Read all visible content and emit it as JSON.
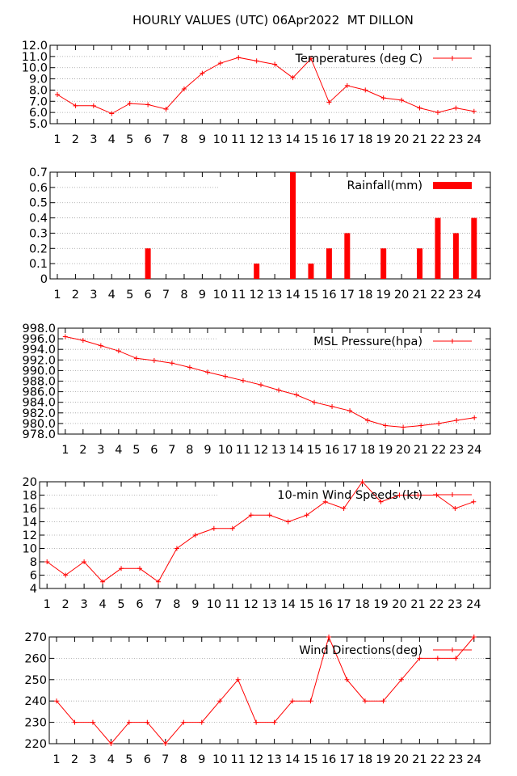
{
  "title": "HOURLY VALUES (UTC) 06Apr2022  MT DILLON",
  "chart_data": [
    {
      "type": "line",
      "legend": "Temperatures (deg C)",
      "legend_position": "top-right",
      "grid": true,
      "x": [
        1,
        2,
        3,
        4,
        5,
        6,
        7,
        8,
        9,
        10,
        11,
        12,
        13,
        14,
        15,
        16,
        17,
        18,
        19,
        20,
        21,
        22,
        23,
        24
      ],
      "y": [
        7.6,
        6.6,
        6.6,
        5.9,
        6.8,
        6.7,
        6.3,
        8.1,
        9.5,
        10.4,
        10.9,
        10.6,
        10.3,
        9.1,
        10.8,
        6.9,
        8.4,
        8.0,
        7.3,
        7.1,
        6.4,
        6.0,
        6.4,
        6.1
      ],
      "ylim": [
        5.0,
        12.0
      ],
      "xticks": [
        "1",
        "2",
        "3",
        "4",
        "5",
        "6",
        "7",
        "8",
        "9",
        "10",
        "11",
        "12",
        "13",
        "14",
        "15",
        "16",
        "17",
        "18",
        "19",
        "20",
        "21",
        "22",
        "23",
        "24"
      ],
      "yticks": [
        "5.0",
        "6.0",
        "7.0",
        "8.0",
        "9.0",
        "10.0",
        "11.0",
        "12.0"
      ]
    },
    {
      "type": "bar",
      "legend": "Rainfall(mm)",
      "legend_position": "top-right",
      "grid": true,
      "x": [
        1,
        2,
        3,
        4,
        5,
        6,
        7,
        8,
        9,
        10,
        11,
        12,
        13,
        14,
        15,
        16,
        17,
        18,
        19,
        20,
        21,
        22,
        23,
        24
      ],
      "y": [
        0,
        0,
        0,
        0,
        0,
        0.2,
        0,
        0,
        0,
        0,
        0,
        0.1,
        0,
        0.7,
        0.1,
        0.2,
        0.3,
        0,
        0.2,
        0,
        0.2,
        0.4,
        0.3,
        0.4
      ],
      "ylim": [
        0,
        0.7
      ],
      "xticks": [
        "1",
        "2",
        "3",
        "4",
        "5",
        "6",
        "7",
        "8",
        "9",
        "10",
        "11",
        "12",
        "13",
        "14",
        "15",
        "16",
        "17",
        "18",
        "19",
        "20",
        "21",
        "22",
        "23",
        "24"
      ],
      "yticks": [
        "0",
        "0.1",
        "0.2",
        "0.3",
        "0.4",
        "0.5",
        "0.6",
        "0.7"
      ]
    },
    {
      "type": "line",
      "legend": "MSL Pressure(hpa)",
      "legend_position": "top-right",
      "grid": true,
      "x": [
        1,
        2,
        3,
        4,
        5,
        6,
        7,
        8,
        9,
        10,
        11,
        12,
        13,
        14,
        15,
        16,
        17,
        18,
        19,
        20,
        21,
        22,
        23,
        24
      ],
      "y": [
        996.4,
        995.7,
        994.7,
        993.7,
        992.3,
        991.9,
        991.4,
        990.6,
        989.7,
        988.9,
        988.1,
        987.3,
        986.3,
        985.4,
        984.0,
        983.2,
        982.4,
        980.6,
        979.6,
        979.3,
        979.6,
        980.0,
        980.6,
        981.1
      ],
      "ylim": [
        978.0,
        998.0
      ],
      "xticks": [
        "1",
        "2",
        "3",
        "4",
        "5",
        "6",
        "7",
        "8",
        "9",
        "10",
        "11",
        "12",
        "13",
        "14",
        "15",
        "16",
        "17",
        "18",
        "19",
        "20",
        "21",
        "22",
        "23",
        "24"
      ],
      "yticks": [
        "978.0",
        "980.0",
        "982.0",
        "984.0",
        "986.0",
        "988.0",
        "990.0",
        "992.0",
        "994.0",
        "996.0",
        "998.0"
      ]
    },
    {
      "type": "line",
      "legend": "10-min Wind Speeds (kt)",
      "legend_position": "top-right",
      "grid": true,
      "x": [
        1,
        2,
        3,
        4,
        5,
        6,
        7,
        8,
        9,
        10,
        11,
        12,
        13,
        14,
        15,
        16,
        17,
        18,
        19,
        20,
        21,
        22,
        23,
        24
      ],
      "y": [
        8,
        6,
        8,
        5,
        7,
        7,
        5,
        10,
        12,
        13,
        13,
        15,
        15,
        14,
        15,
        17,
        16,
        20,
        17,
        18,
        18,
        18,
        16,
        17
      ],
      "ylim": [
        4,
        20
      ],
      "xticks": [
        "1",
        "2",
        "3",
        "4",
        "5",
        "6",
        "7",
        "8",
        "9",
        "10",
        "11",
        "12",
        "13",
        "14",
        "15",
        "16",
        "17",
        "18",
        "19",
        "20",
        "21",
        "22",
        "23",
        "24"
      ],
      "yticks": [
        "4",
        "6",
        "8",
        "10",
        "12",
        "14",
        "16",
        "18",
        "20"
      ]
    },
    {
      "type": "line",
      "legend": "Wind Directions(deg)",
      "legend_position": "top-right",
      "grid": true,
      "x": [
        1,
        2,
        3,
        4,
        5,
        6,
        7,
        8,
        9,
        10,
        11,
        12,
        13,
        14,
        15,
        16,
        17,
        18,
        19,
        20,
        21,
        22,
        23,
        24
      ],
      "y": [
        240,
        230,
        230,
        220,
        230,
        230,
        220,
        230,
        230,
        240,
        250,
        230,
        230,
        240,
        240,
        270,
        250,
        240,
        240,
        250,
        260,
        260,
        260,
        270
      ],
      "ylim": [
        220,
        270
      ],
      "xticks": [
        "1",
        "2",
        "3",
        "4",
        "5",
        "6",
        "7",
        "8",
        "9",
        "10",
        "11",
        "12",
        "13",
        "14",
        "15",
        "16",
        "17",
        "18",
        "19",
        "20",
        "21",
        "22",
        "23",
        "24"
      ],
      "yticks": [
        "220",
        "230",
        "240",
        "250",
        "260",
        "270"
      ]
    }
  ],
  "colors": {
    "series": "#ff0000",
    "grid": "#a0a0a0",
    "axis": "#000000"
  }
}
